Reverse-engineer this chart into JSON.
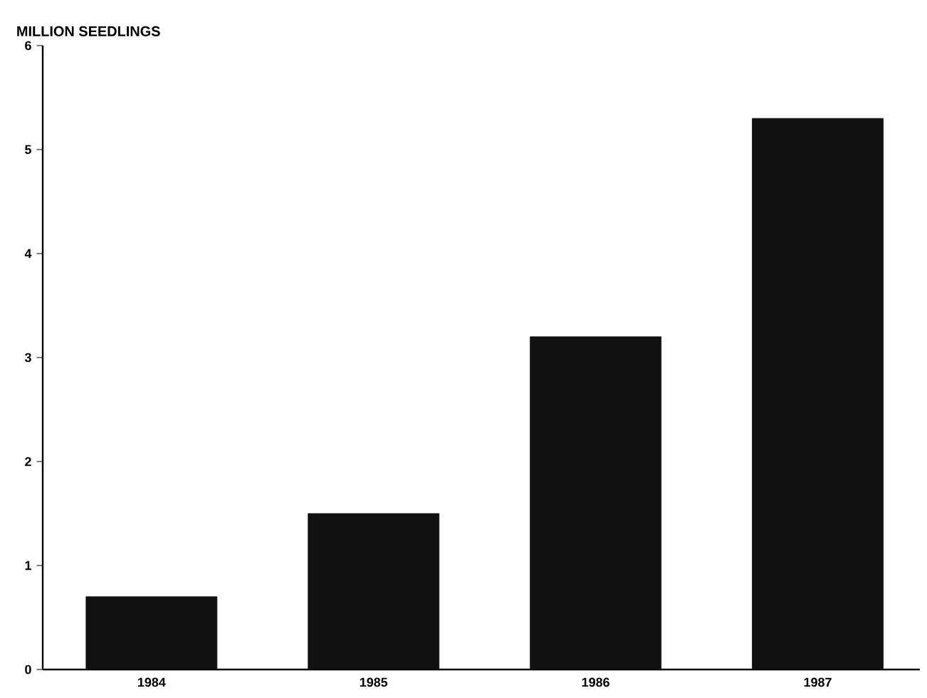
{
  "chart_data": {
    "type": "bar",
    "ylabel": "MILLION SEEDLINGS",
    "categories": [
      "1984",
      "1985",
      "1986",
      "1987"
    ],
    "values": [
      0.7,
      1.5,
      3.2,
      5.3
    ],
    "color": "#111111",
    "ylim": [
      0,
      6
    ],
    "yticks": [
      0,
      1,
      2,
      3,
      4,
      5,
      6
    ],
    "grid": false
  }
}
